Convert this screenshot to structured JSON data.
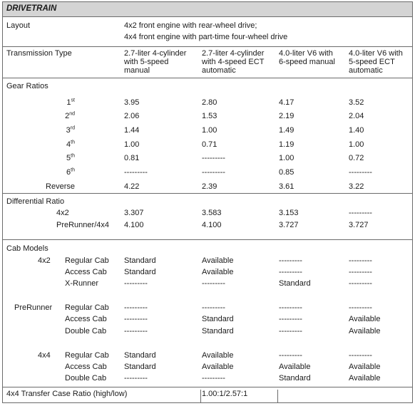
{
  "title": "DRIVETRAIN",
  "layout": {
    "label": "Layout",
    "lines": [
      "4x2 front engine with rear-wheel drive;",
      "4x4 front engine with part-time four-wheel drive"
    ]
  },
  "transmission": {
    "label": "Transmission Type",
    "columns": [
      [
        "2.7-liter 4-cylinder",
        "with 5-speed",
        "manual"
      ],
      [
        "2.7-liter 4-cylinder",
        "with 4-speed ECT",
        "automatic"
      ],
      [
        "4.0-liter V6 with",
        "6-speed manual"
      ],
      [
        "4.0-liter V6 with",
        "5-speed ECT",
        "automatic"
      ]
    ]
  },
  "gear_ratios": {
    "label": "Gear Ratios",
    "rows": [
      {
        "num": "1",
        "sup": "st",
        "values": [
          "3.95",
          "2.80",
          "4.17",
          "3.52"
        ]
      },
      {
        "num": "2",
        "sup": "nd",
        "values": [
          "2.06",
          "1.53",
          "2.19",
          "2.04"
        ]
      },
      {
        "num": "3",
        "sup": "rd",
        "values": [
          "1.44",
          "1.00",
          "1.49",
          "1.40"
        ]
      },
      {
        "num": "4",
        "sup": "th",
        "values": [
          "1.00",
          "0.71",
          "1.19",
          "1.00"
        ]
      },
      {
        "num": "5",
        "sup": "th",
        "values": [
          "0.81",
          "---------",
          "1.00",
          "0.72"
        ]
      },
      {
        "num": "6",
        "sup": "th",
        "values": [
          "---------",
          "---------",
          "0.85",
          "---------"
        ]
      },
      {
        "num": "Reverse",
        "sup": "",
        "values": [
          "4.22",
          "2.39",
          "3.61",
          "3.22"
        ]
      }
    ]
  },
  "differential": {
    "label": "Differential Ratio",
    "rows": [
      {
        "name": "4x2",
        "values": [
          "3.307",
          "3.583",
          "3.153",
          "---------"
        ]
      },
      {
        "name": "PreRunner/4x4",
        "values": [
          "4.100",
          "4.100",
          "3.727",
          "3.727"
        ]
      }
    ]
  },
  "cab_models": {
    "label": "Cab Models",
    "groups": [
      {
        "name": "4x2",
        "rows": [
          {
            "cab": "Regular Cab",
            "values": [
              "Standard",
              "Available",
              "---------",
              "---------"
            ]
          },
          {
            "cab": "Access Cab",
            "values": [
              "Standard",
              "Available",
              "---------",
              "---------"
            ]
          },
          {
            "cab": "X-Runner",
            "values": [
              "---------",
              "---------",
              "Standard",
              "---------"
            ]
          }
        ]
      },
      {
        "name": "PreRunner",
        "rows": [
          {
            "cab": "Regular Cab",
            "values": [
              "---------",
              "---------",
              "---------",
              "---------"
            ]
          },
          {
            "cab": "Access Cab",
            "values": [
              "---------",
              "Standard",
              "---------",
              "Available"
            ]
          },
          {
            "cab": "Double Cab",
            "values": [
              "---------",
              "Standard",
              "---------",
              "Available"
            ]
          }
        ]
      },
      {
        "name": "4x4",
        "rows": [
          {
            "cab": "Regular Cab",
            "values": [
              "Standard",
              "Available",
              "---------",
              "---------"
            ]
          },
          {
            "cab": "Access Cab",
            "values": [
              "Standard",
              "Available",
              "Available",
              "Available"
            ]
          },
          {
            "cab": "Double Cab",
            "values": [
              "---------",
              "---------",
              "Standard",
              "Available"
            ]
          }
        ]
      }
    ]
  },
  "transfer_case": {
    "label": "4x4 Transfer Case Ratio (high/low)",
    "value": "1.00:1/2.57:1"
  }
}
